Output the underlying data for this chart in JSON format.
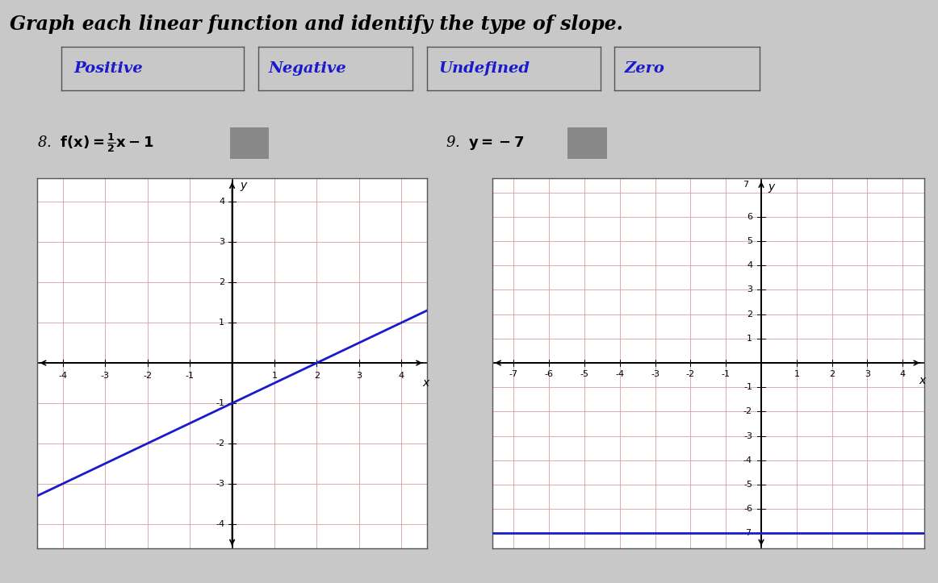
{
  "title": "Graph each linear function and identify the type of slope.",
  "slope_labels": [
    "Positive",
    "Negative",
    "Undefined",
    "Zero"
  ],
  "graph1": {
    "xlim": [
      -4.6,
      4.6
    ],
    "ylim": [
      -4.6,
      4.6
    ],
    "line_slope": 0.5,
    "line_intercept": -1
  },
  "graph2": {
    "xlim": [
      -7.6,
      4.6
    ],
    "ylim": [
      -7.6,
      7.6
    ],
    "y_value": -7
  },
  "bg_color": "#c8c8c8",
  "grid_bg": "#ffffff",
  "grid_color": "#d4a0a0",
  "box_color": "#1a1acc",
  "answer_box_color": "#888888",
  "title_fontsize": 17,
  "label_fontsize": 13,
  "slope_fontsize": 14,
  "tick_fontsize": 8,
  "line_color": "#1a1acc"
}
